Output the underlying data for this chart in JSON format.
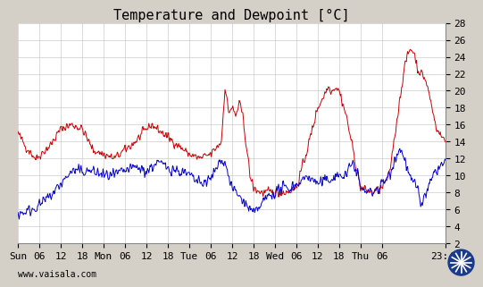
{
  "title": "Temperature and Dewpoint [°C]",
  "xlim": [
    0,
    119.75
  ],
  "ylim": [
    2,
    28
  ],
  "yticks": [
    2,
    4,
    6,
    8,
    10,
    12,
    14,
    16,
    18,
    20,
    22,
    24,
    26,
    28
  ],
  "xtick_positions": [
    0,
    6,
    12,
    18,
    24,
    30,
    36,
    42,
    48,
    54,
    60,
    66,
    72,
    78,
    84,
    90,
    96,
    102,
    119.75
  ],
  "xtick_labels": [
    "Sun",
    "06",
    "12",
    "18",
    "Mon",
    "06",
    "12",
    "18",
    "Tue",
    "06",
    "12",
    "18",
    "Wed",
    "06",
    "12",
    "18",
    "Thu",
    "06",
    "23:45"
  ],
  "temp_color": "#cc0000",
  "dewp_color": "#0000cc",
  "bg_color": "#d4d0c8",
  "plot_bg_color": "#ffffff",
  "grid_color": "#cccccc",
  "watermark": "www.vaisala.com",
  "title_fontsize": 11,
  "tick_fontsize": 8,
  "line_width": 0.7
}
